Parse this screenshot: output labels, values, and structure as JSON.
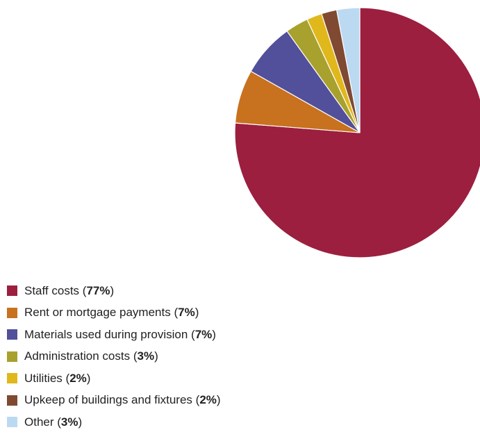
{
  "chart_data": {
    "type": "pie",
    "start_angle_deg": 0,
    "direction": "clockwise",
    "slices": [
      {
        "label": "Staff costs",
        "value": 77,
        "value_label": "77%",
        "color": "#9c1f3f"
      },
      {
        "label": "Rent or mortgage payments",
        "value": 7,
        "value_label": "7%",
        "color": "#c8711f"
      },
      {
        "label": "Materials used during provision",
        "value": 7,
        "value_label": "7%",
        "color": "#52509a"
      },
      {
        "label": "Administration costs",
        "value": 3,
        "value_label": "3%",
        "color": "#a8a12e"
      },
      {
        "label": "Utilities",
        "value": 2,
        "value_label": "2%",
        "color": "#e0b81c"
      },
      {
        "label": "Upkeep of buildings and fixtures",
        "value": 2,
        "value_label": "2%",
        "color": "#7f4a31"
      },
      {
        "label": "Other",
        "value": 3,
        "value_label": "3%",
        "color": "#bcd9f2"
      }
    ],
    "legend_position": "bottom-left"
  }
}
